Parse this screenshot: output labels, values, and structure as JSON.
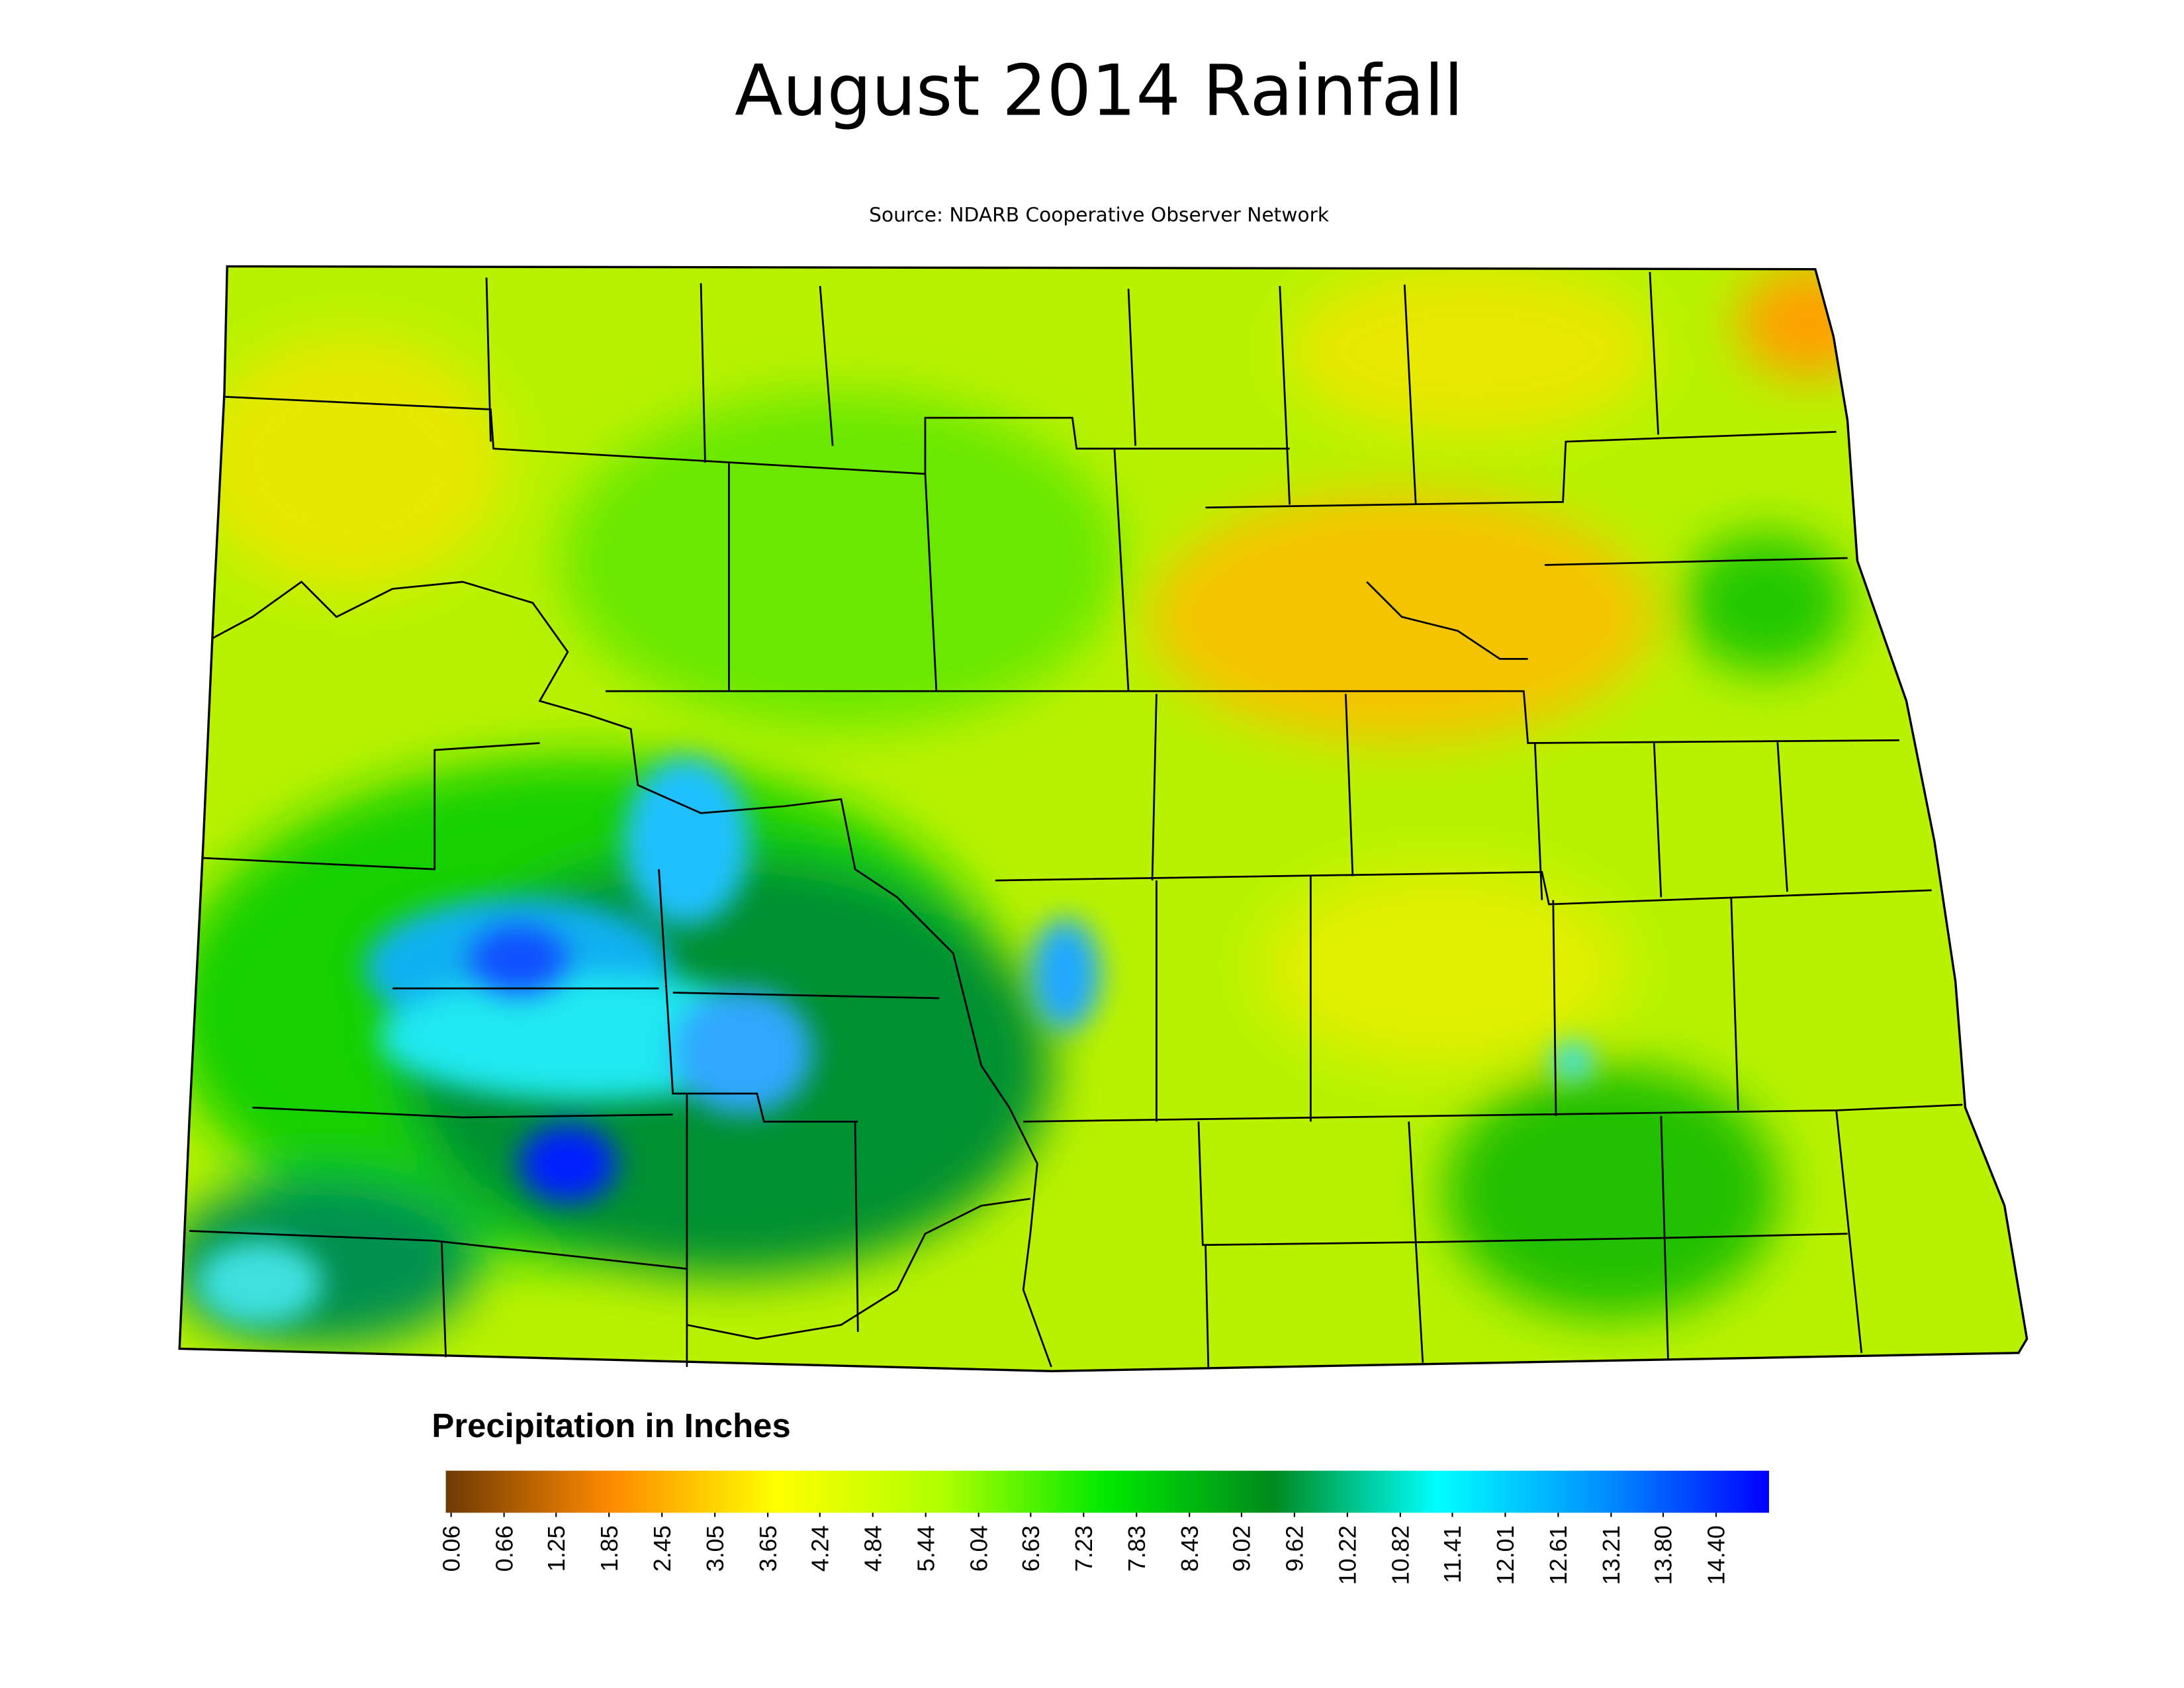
{
  "title": "August 2014 Rainfall",
  "subtitle": "Source: NDARB Cooperative Observer Network",
  "legend": {
    "title": "Precipitation in Inches",
    "lim": [
      0,
      15
    ],
    "colors": [
      "#6e3a05",
      "#ff8a00",
      "#ffff00",
      "#b0ff00",
      "#00e800",
      "#008a1e",
      "#00ffff",
      "#0090ff",
      "#0000ff"
    ],
    "ticks": [
      0.06,
      0.66,
      1.25,
      1.85,
      2.45,
      3.05,
      3.65,
      4.24,
      4.84,
      5.44,
      6.04,
      6.63,
      7.23,
      7.83,
      8.43,
      9.02,
      9.62,
      10.22,
      10.82,
      11.41,
      12.01,
      12.61,
      13.21,
      {
        "value": 13.8,
        "label": "13.80"
      },
      {
        "value": 14.4,
        "label": "14.40"
      }
    ]
  }
}
